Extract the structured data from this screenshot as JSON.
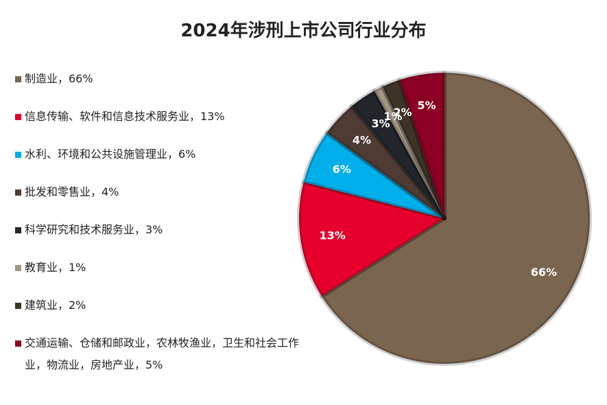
{
  "chart_data": {
    "type": "pie",
    "title": "2024年涉刑上市公司行业分布",
    "categories": [
      "制造业，66%",
      "信息传输、软件和信息技术服务业，13%",
      "水利、环境和公共设施管理业，6%",
      "批发和零售业，4%",
      "科学研究和技术服务业，3%",
      "教育业，1%",
      "建筑业，2%",
      "交通运输、仓储和邮政业，农林牧渔业，卫生和社会工作业，物流业，房地产业，5%"
    ],
    "values": [
      66,
      13,
      6,
      4,
      3,
      1,
      2,
      5
    ],
    "value_labels": [
      "66%",
      "13%",
      "6%",
      "4%",
      "3%",
      "1%",
      "2%",
      "5%"
    ],
    "colors": [
      "#7a6650",
      "#e8002d",
      "#00aeea",
      "#4e3b34",
      "#22262b",
      "#a59786",
      "#3d3428",
      "#8b0023"
    ]
  }
}
